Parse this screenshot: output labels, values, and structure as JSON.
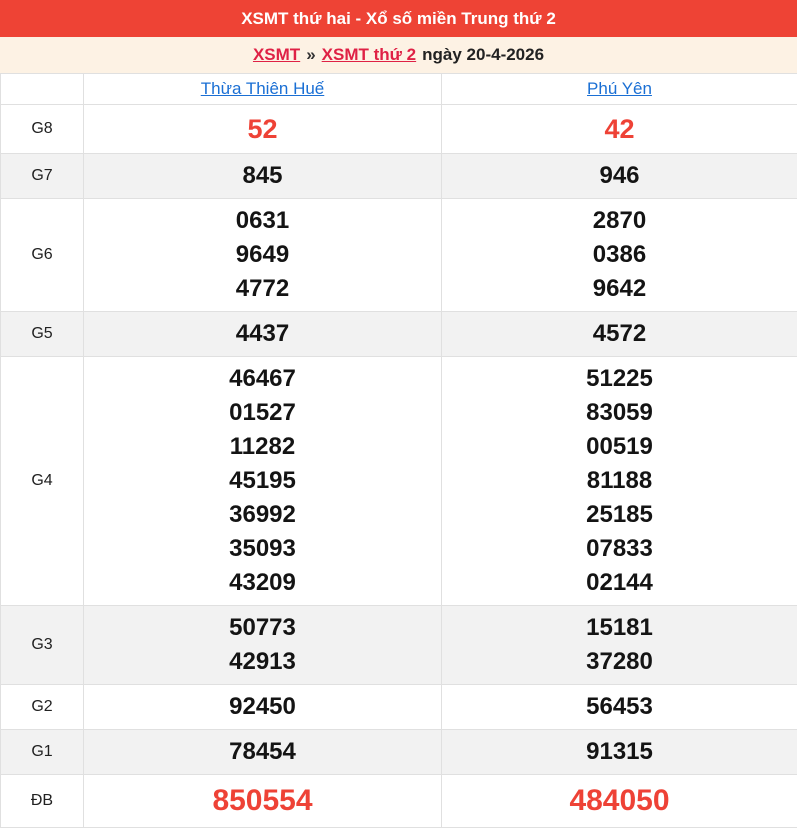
{
  "title_bar": {
    "text": "XSMT thứ hai - Xổ số miền Trung thứ 2"
  },
  "breadcrumb": {
    "link_region": "XSMT",
    "separator": "»",
    "link_day": "XSMT thứ 2",
    "date_text": "ngày 20-4-2026"
  },
  "table": {
    "province_columns": [
      "Thừa Thiên Huế",
      "Phú Yên"
    ],
    "rows": [
      {
        "label": "G8",
        "style": "g8",
        "cells": [
          [
            "52"
          ],
          [
            "42"
          ]
        ]
      },
      {
        "label": "G7",
        "style": "normal",
        "cells": [
          [
            "845"
          ],
          [
            "946"
          ]
        ]
      },
      {
        "label": "G6",
        "style": "normal",
        "cells": [
          [
            "0631",
            "9649",
            "4772"
          ],
          [
            "2870",
            "0386",
            "9642"
          ]
        ]
      },
      {
        "label": "G5",
        "style": "normal",
        "cells": [
          [
            "4437"
          ],
          [
            "4572"
          ]
        ]
      },
      {
        "label": "G4",
        "style": "normal",
        "cells": [
          [
            "46467",
            "01527",
            "11282",
            "45195",
            "36992",
            "35093",
            "43209"
          ],
          [
            "51225",
            "83059",
            "00519",
            "81188",
            "25185",
            "07833",
            "02144"
          ]
        ]
      },
      {
        "label": "G3",
        "style": "normal",
        "cells": [
          [
            "50773",
            "42913"
          ],
          [
            "15181",
            "37280"
          ]
        ]
      },
      {
        "label": "G2",
        "style": "normal",
        "cells": [
          [
            "92450"
          ],
          [
            "56453"
          ]
        ]
      },
      {
        "label": "G1",
        "style": "normal",
        "cells": [
          [
            "78454"
          ],
          [
            "91315"
          ]
        ]
      },
      {
        "label": "ĐB",
        "style": "db",
        "cells": [
          [
            "850554"
          ],
          [
            "484050"
          ]
        ]
      }
    ]
  },
  "colors": {
    "title_bar_bg": "#ee4335",
    "breadcrumb_bg": "#fdf2e4",
    "breadcrumb_link": "#df2145",
    "province_link": "#1a6fd4",
    "highlight_number": "#ee4236",
    "normal_number": "#141414",
    "row_alt_bg": "#f2f2f2",
    "border": "#e0e0e0"
  }
}
